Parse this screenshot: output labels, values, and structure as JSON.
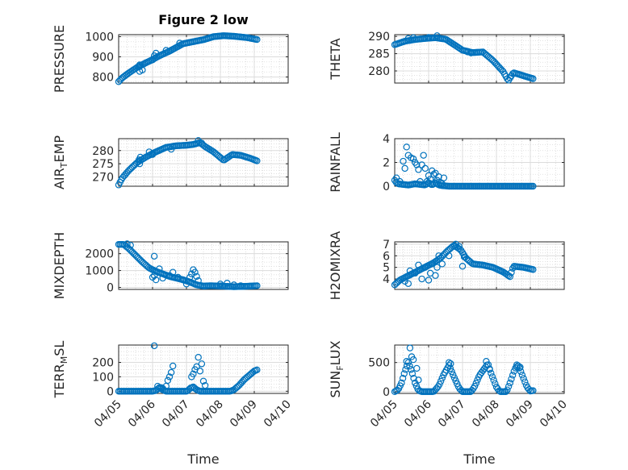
{
  "figure": {
    "title": "Figure 2 low",
    "marker_color": "#0072BD"
  },
  "chart_data": [
    {
      "type": "scatter",
      "ylabel": "PRESSURE",
      "ylim": [
        770,
        1010
      ],
      "yticks": [
        800,
        900,
        1000
      ],
      "xlim": [
        "04/05",
        "04/10"
      ],
      "xticks": [
        "04/05",
        "04/06",
        "04/07",
        "04/08",
        "04/09",
        "04/10"
      ],
      "knots": [
        [
          0.0,
          777
        ],
        [
          0.1,
          795
        ],
        [
          0.3,
          820
        ],
        [
          0.55,
          848
        ],
        [
          0.8,
          870
        ],
        [
          0.95,
          882
        ],
        [
          1.2,
          905
        ],
        [
          1.5,
          928
        ],
        [
          1.9,
          965
        ],
        [
          2.2,
          975
        ],
        [
          2.5,
          985
        ],
        [
          2.8,
          1000
        ],
        [
          3.1,
          1005
        ],
        [
          3.4,
          1002
        ],
        [
          3.8,
          995
        ],
        [
          4.1,
          985
        ]
      ],
      "extra_points": [
        [
          0.6,
          850
        ],
        [
          0.62,
          860
        ],
        [
          0.7,
          835
        ],
        [
          0.62,
          828
        ],
        [
          1.0,
          885
        ],
        [
          1.05,
          905
        ],
        [
          1.1,
          918
        ],
        [
          1.4,
          932
        ],
        [
          1.8,
          968
        ]
      ]
    },
    {
      "type": "scatter",
      "ylabel": "THETA",
      "ylim": [
        276.5,
        290.5
      ],
      "yticks": [
        280,
        285,
        290
      ],
      "xlim": [
        "04/05",
        "04/10"
      ],
      "xticks": [
        "04/05",
        "04/06",
        "04/07",
        "04/08",
        "04/09",
        "04/10"
      ],
      "knots": [
        [
          0.0,
          287.6
        ],
        [
          0.3,
          288.6
        ],
        [
          0.6,
          289.1
        ],
        [
          0.9,
          289.4
        ],
        [
          1.2,
          289.6
        ],
        [
          1.5,
          289.2
        ],
        [
          1.8,
          287.3
        ],
        [
          2.0,
          286.0
        ],
        [
          2.3,
          285.3
        ],
        [
          2.6,
          285.5
        ],
        [
          2.9,
          283.0
        ],
        [
          3.2,
          279.8
        ],
        [
          3.35,
          277.2
        ],
        [
          3.5,
          279.5
        ],
        [
          3.8,
          278.6
        ],
        [
          4.1,
          277.7
        ]
      ],
      "extra_points": [
        [
          0.4,
          289.4
        ],
        [
          0.55,
          289.6
        ],
        [
          1.0,
          289.7
        ],
        [
          1.25,
          290.2
        ],
        [
          2.15,
          285.5
        ],
        [
          2.25,
          285.2
        ]
      ]
    },
    {
      "type": "scatter",
      "ylabel": "AIR_T_EMP",
      "ylim": [
        266.5,
        284.5
      ],
      "yticks": [
        270,
        275,
        280
      ],
      "xlim": [
        "04/05",
        "04/10"
      ],
      "xticks": [
        "04/05",
        "04/06",
        "04/07",
        "04/08",
        "04/09",
        "04/10"
      ],
      "knots": [
        [
          0.0,
          267
        ],
        [
          0.1,
          269.5
        ],
        [
          0.3,
          272.5
        ],
        [
          0.55,
          275.5
        ],
        [
          0.8,
          277.5
        ],
        [
          1.1,
          279.5
        ],
        [
          1.4,
          281.2
        ],
        [
          1.7,
          281.8
        ],
        [
          2.0,
          282.0
        ],
        [
          2.2,
          282.3
        ],
        [
          2.4,
          283.0
        ],
        [
          2.55,
          281.5
        ],
        [
          2.8,
          279.5
        ],
        [
          3.1,
          276.3
        ],
        [
          3.35,
          278.5
        ],
        [
          3.6,
          278.2
        ],
        [
          3.9,
          277.0
        ],
        [
          4.1,
          276.0
        ]
      ],
      "extra_points": [
        [
          0.6,
          276.5
        ],
        [
          0.62,
          275.0
        ],
        [
          0.64,
          277.5
        ],
        [
          0.9,
          279.5
        ],
        [
          1.0,
          278.5
        ],
        [
          1.55,
          280.5
        ],
        [
          2.35,
          283.8
        ],
        [
          2.45,
          282.8
        ]
      ]
    },
    {
      "type": "scatter",
      "ylabel": "RAINFALL",
      "ylim": [
        0,
        4
      ],
      "yticks": [
        0,
        2,
        4
      ],
      "xlim": [
        "04/05",
        "04/10"
      ],
      "xticks": [
        "04/05",
        "04/06",
        "04/07",
        "04/08",
        "04/09",
        "04/10"
      ],
      "knots": [
        [
          0.0,
          0.5
        ],
        [
          0.05,
          0.3
        ],
        [
          0.1,
          0.2
        ],
        [
          0.4,
          0.1
        ],
        [
          0.6,
          0.2
        ],
        [
          0.9,
          0.1
        ],
        [
          1.0,
          0.3
        ],
        [
          1.1,
          0.1
        ],
        [
          1.2,
          0.3
        ],
        [
          1.3,
          0.1
        ],
        [
          1.4,
          0.05
        ],
        [
          1.6,
          0.0
        ],
        [
          4.1,
          0.0
        ]
      ],
      "extra_points": [
        [
          0.05,
          0.7
        ],
        [
          0.15,
          0.4
        ],
        [
          0.25,
          2.1
        ],
        [
          0.3,
          1.5
        ],
        [
          0.35,
          3.3
        ],
        [
          0.4,
          2.6
        ],
        [
          0.48,
          2.4
        ],
        [
          0.55,
          2.3
        ],
        [
          0.6,
          2.0
        ],
        [
          0.65,
          1.8
        ],
        [
          0.7,
          1.4
        ],
        [
          0.75,
          0.4
        ],
        [
          0.8,
          1.8
        ],
        [
          0.85,
          2.6
        ],
        [
          0.9,
          1.5
        ],
        [
          0.95,
          0.4
        ],
        [
          1.0,
          0.9
        ],
        [
          1.05,
          0.6
        ],
        [
          1.1,
          1.3
        ],
        [
          1.15,
          1.0
        ],
        [
          1.2,
          1.1
        ],
        [
          1.25,
          0.5
        ],
        [
          1.3,
          0.8
        ],
        [
          1.35,
          0.3
        ],
        [
          1.4,
          0.2
        ],
        [
          1.45,
          0.7
        ]
      ]
    },
    {
      "type": "scatter",
      "ylabel": "MIXDEPTH",
      "ylim": [
        -120,
        2700
      ],
      "yticks": [
        0,
        1000,
        2000
      ],
      "xlim": [
        "04/05",
        "04/10"
      ],
      "xticks": [
        "04/05",
        "04/06",
        "04/07",
        "04/08",
        "04/09",
        "04/10"
      ],
      "knots": [
        [
          0.0,
          2550
        ],
        [
          0.15,
          2550
        ],
        [
          0.3,
          2300
        ],
        [
          0.5,
          1900
        ],
        [
          0.7,
          1500
        ],
        [
          0.9,
          1150
        ],
        [
          1.1,
          950
        ],
        [
          1.3,
          800
        ],
        [
          1.5,
          650
        ],
        [
          1.7,
          550
        ],
        [
          1.9,
          450
        ],
        [
          2.1,
          320
        ],
        [
          2.3,
          150
        ],
        [
          2.5,
          80
        ],
        [
          2.7,
          100
        ],
        [
          3.0,
          80
        ],
        [
          3.4,
          40
        ],
        [
          3.7,
          60
        ],
        [
          4.1,
          100
        ]
      ],
      "extra_points": [
        [
          0.25,
          2580
        ],
        [
          0.35,
          2500
        ],
        [
          1.0,
          600
        ],
        [
          1.05,
          700
        ],
        [
          1.1,
          450
        ],
        [
          1.2,
          1100
        ],
        [
          1.05,
          1850
        ],
        [
          1.3,
          550
        ],
        [
          1.5,
          700
        ],
        [
          1.6,
          900
        ],
        [
          1.75,
          600
        ],
        [
          1.9,
          450
        ],
        [
          2.0,
          200
        ],
        [
          2.1,
          600
        ],
        [
          2.15,
          800
        ],
        [
          2.2,
          1050
        ],
        [
          2.25,
          900
        ],
        [
          2.3,
          650
        ],
        [
          2.35,
          400
        ],
        [
          3.0,
          200
        ],
        [
          3.05,
          100
        ],
        [
          3.2,
          250
        ],
        [
          3.4,
          150
        ],
        [
          3.6,
          100
        ]
      ]
    },
    {
      "type": "scatter",
      "ylabel": "H2OMIXRA",
      "ylim": [
        3.1,
        7.2
      ],
      "yticks": [
        4,
        5,
        6,
        7
      ],
      "xlim": [
        "04/05",
        "04/10"
      ],
      "xticks": [
        "04/05",
        "04/06",
        "04/07",
        "04/08",
        "04/09",
        "04/10"
      ],
      "knots": [
        [
          0.0,
          3.5
        ],
        [
          0.15,
          3.9
        ],
        [
          0.35,
          4.2
        ],
        [
          0.55,
          4.5
        ],
        [
          0.75,
          4.8
        ],
        [
          0.95,
          5.1
        ],
        [
          1.15,
          5.4
        ],
        [
          1.35,
          5.8
        ],
        [
          1.55,
          6.4
        ],
        [
          1.75,
          6.9
        ],
        [
          1.95,
          6.5
        ],
        [
          2.1,
          5.8
        ],
        [
          2.3,
          5.3
        ],
        [
          2.6,
          5.2
        ],
        [
          2.9,
          5.0
        ],
        [
          3.2,
          4.6
        ],
        [
          3.4,
          4.2
        ],
        [
          3.5,
          5.1
        ],
        [
          3.8,
          5.0
        ],
        [
          4.1,
          4.8
        ]
      ],
      "extra_points": [
        [
          0.3,
          3.8
        ],
        [
          0.4,
          3.6
        ],
        [
          0.45,
          4.7
        ],
        [
          0.6,
          4.5
        ],
        [
          0.7,
          5.2
        ],
        [
          0.8,
          4.0
        ],
        [
          0.9,
          5.0
        ],
        [
          1.0,
          3.9
        ],
        [
          1.05,
          4.5
        ],
        [
          1.1,
          5.3
        ],
        [
          1.2,
          4.3
        ],
        [
          1.25,
          5.0
        ],
        [
          1.3,
          6.0
        ],
        [
          1.4,
          5.3
        ],
        [
          1.6,
          6.0
        ],
        [
          1.8,
          7.0
        ],
        [
          1.9,
          6.8
        ],
        [
          2.0,
          5.1
        ],
        [
          2.05,
          5.9
        ]
      ]
    },
    {
      "type": "scatter",
      "ylabel": "TERR_M_SL",
      "ylim": [
        -15,
        320
      ],
      "yticks": [
        0,
        100,
        200
      ],
      "xlim": [
        "04/05",
        "04/10"
      ],
      "xticks": [
        "04/05",
        "04/06",
        "04/07",
        "04/08",
        "04/09",
        "04/10"
      ],
      "knots": [
        [
          0.0,
          0
        ],
        [
          1.0,
          0
        ],
        [
          1.1,
          5
        ],
        [
          1.2,
          25
        ],
        [
          1.3,
          10
        ],
        [
          1.4,
          0
        ],
        [
          2.0,
          0
        ],
        [
          2.05,
          5
        ],
        [
          2.1,
          20
        ],
        [
          2.2,
          30
        ],
        [
          2.3,
          10
        ],
        [
          2.4,
          0
        ],
        [
          3.3,
          0
        ],
        [
          3.4,
          10
        ],
        [
          3.55,
          40
        ],
        [
          3.7,
          80
        ],
        [
          3.85,
          110
        ],
        [
          4.0,
          140
        ],
        [
          4.1,
          150
        ]
      ],
      "extra_points": [
        [
          1.05,
          315
        ],
        [
          1.15,
          35
        ],
        [
          1.25,
          25
        ],
        [
          1.3,
          20
        ],
        [
          1.4,
          35
        ],
        [
          1.45,
          75
        ],
        [
          1.5,
          100
        ],
        [
          1.55,
          130
        ],
        [
          1.6,
          175
        ],
        [
          2.15,
          100
        ],
        [
          2.2,
          120
        ],
        [
          2.25,
          150
        ],
        [
          2.3,
          170
        ],
        [
          2.35,
          235
        ],
        [
          2.4,
          140
        ],
        [
          2.45,
          190
        ],
        [
          2.5,
          70
        ],
        [
          2.55,
          40
        ]
      ]
    },
    {
      "type": "scatter",
      "ylabel": "SUN_F_LUX",
      "ylim": [
        -30,
        800
      ],
      "yticks": [
        0,
        500
      ],
      "xlim": [
        "04/05",
        "04/10"
      ],
      "xticks": [
        "04/05",
        "04/06",
        "04/07",
        "04/08",
        "04/09",
        "04/10"
      ],
      "knots": [
        [
          0.0,
          0
        ],
        [
          0.1,
          30
        ],
        [
          0.2,
          150
        ],
        [
          0.3,
          350
        ],
        [
          0.4,
          500
        ],
        [
          0.5,
          350
        ],
        [
          0.6,
          150
        ],
        [
          0.7,
          20
        ],
        [
          0.8,
          0
        ],
        [
          1.15,
          0
        ],
        [
          1.3,
          100
        ],
        [
          1.45,
          300
        ],
        [
          1.6,
          450
        ],
        [
          1.75,
          250
        ],
        [
          1.9,
          60
        ],
        [
          2.0,
          0
        ],
        [
          2.25,
          0
        ],
        [
          2.35,
          80
        ],
        [
          2.5,
          280
        ],
        [
          2.65,
          400
        ],
        [
          2.75,
          480
        ],
        [
          2.85,
          300
        ],
        [
          3.0,
          80
        ],
        [
          3.1,
          0
        ],
        [
          3.3,
          0
        ],
        [
          3.4,
          150
        ],
        [
          3.55,
          400
        ],
        [
          3.65,
          450
        ],
        [
          3.75,
          300
        ],
        [
          3.9,
          80
        ],
        [
          4.0,
          10
        ],
        [
          4.1,
          20
        ]
      ],
      "extra_points": [
        [
          0.35,
          520
        ],
        [
          0.45,
          750
        ],
        [
          0.5,
          600
        ],
        [
          0.55,
          550
        ],
        [
          0.65,
          400
        ],
        [
          0.7,
          200
        ],
        [
          1.6,
          500
        ],
        [
          1.65,
          480
        ],
        [
          2.7,
          520
        ],
        [
          2.8,
          380
        ],
        [
          3.6,
          460
        ],
        [
          3.7,
          420
        ]
      ]
    }
  ],
  "xlabels": [
    "Time",
    "Time"
  ]
}
